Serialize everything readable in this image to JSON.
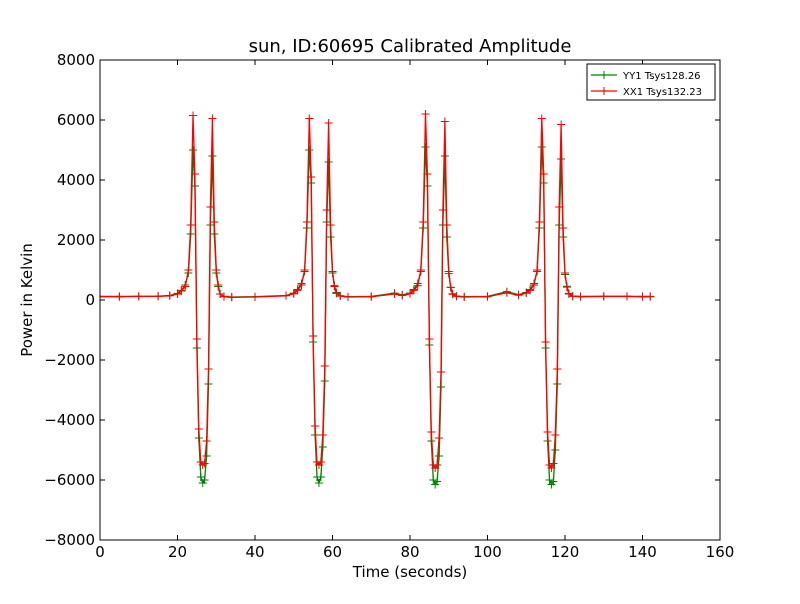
{
  "chart_data": {
    "type": "line",
    "title": "sun, ID:60695 Calibrated Amplitude",
    "xlabel": "Time (seconds)",
    "ylabel": "Power in Kelvin",
    "xlim": [
      0,
      160
    ],
    "ylim": [
      -8000,
      8000
    ],
    "xticks": [
      0,
      20,
      40,
      60,
      80,
      100,
      120,
      140,
      160
    ],
    "xtick_labels": [
      "0",
      "20",
      "40",
      "60",
      "80",
      "100",
      "120",
      "140",
      "160"
    ],
    "yticks": [
      -8000,
      -6000,
      -4000,
      -2000,
      0,
      2000,
      4000,
      6000,
      8000
    ],
    "ytick_labels": [
      "−8000",
      "−6000",
      "−4000",
      "−2000",
      "0",
      "2000",
      "4000",
      "6000",
      "8000"
    ],
    "grid": false,
    "legend_position": "top-right",
    "series": [
      {
        "name": "YY1 Tsys128.26",
        "color": "#008000",
        "marker": "plus",
        "x": [
          0,
          5,
          10,
          15,
          18,
          20,
          21,
          22,
          22.8,
          23.4,
          24,
          24.5,
          25,
          25.5,
          26,
          26.5,
          27,
          27.5,
          28,
          28.5,
          29,
          29.5,
          30,
          30.5,
          31,
          32,
          34,
          40,
          48,
          50,
          51,
          52,
          52.8,
          53.4,
          54,
          54.5,
          55,
          55.5,
          56,
          56.5,
          57,
          57.5,
          58,
          58.5,
          59,
          59.5,
          60,
          60.5,
          61,
          62,
          64,
          70,
          76,
          78,
          80,
          81,
          82,
          82.8,
          83.4,
          84,
          84.5,
          85,
          85.5,
          86,
          86.5,
          87,
          87.5,
          88,
          88.5,
          89,
          89.5,
          90,
          90.5,
          91,
          92,
          94,
          100,
          105,
          108,
          110,
          111,
          112,
          112.8,
          113.4,
          114,
          114.5,
          115,
          115.5,
          116,
          116.5,
          117,
          117.5,
          118,
          118.5,
          119,
          119.5,
          120,
          120.5,
          121,
          122,
          124,
          130,
          136,
          140,
          142
        ],
        "y": [
          120,
          120,
          125,
          130,
          150,
          220,
          320,
          500,
          900,
          2200,
          5000,
          3800,
          -1600,
          -4600,
          -5900,
          -6100,
          -6000,
          -5200,
          -2800,
          2500,
          4800,
          2200,
          900,
          450,
          200,
          120,
          100,
          110,
          150,
          230,
          350,
          550,
          950,
          2400,
          5000,
          3900,
          -1400,
          -4500,
          -5900,
          -6100,
          -5900,
          -4900,
          -2700,
          2600,
          4600,
          2100,
          900,
          480,
          250,
          140,
          110,
          120,
          230,
          170,
          230,
          350,
          550,
          950,
          2400,
          5100,
          3800,
          -1500,
          -4700,
          -6000,
          -6150,
          -6050,
          -5200,
          -2900,
          2500,
          4800,
          2100,
          880,
          420,
          210,
          130,
          110,
          120,
          280,
          180,
          250,
          350,
          550,
          950,
          2400,
          5100,
          3900,
          -1600,
          -4700,
          -6000,
          -6150,
          -6050,
          -5000,
          -2800,
          2500,
          4700,
          2100,
          850,
          460,
          220,
          130,
          120,
          125,
          125,
          120,
          120
        ]
      },
      {
        "name": "XX1 Tsys132.23",
        "color": "#ff0000",
        "marker": "plus",
        "x": [
          0,
          5,
          10,
          15,
          18,
          20,
          21,
          22,
          22.8,
          23.4,
          24,
          24.5,
          25,
          25.5,
          26,
          26.5,
          27,
          27.5,
          28,
          28.5,
          29,
          29.5,
          30,
          30.5,
          31,
          32,
          34,
          40,
          48,
          50,
          51,
          52,
          52.8,
          53.4,
          54,
          54.5,
          55,
          55.5,
          56,
          56.5,
          57,
          57.5,
          58,
          58.5,
          59,
          59.5,
          60,
          60.5,
          61,
          62,
          64,
          70,
          76,
          78,
          80,
          81,
          82,
          82.8,
          83.4,
          84,
          84.5,
          85,
          85.5,
          86,
          86.5,
          87,
          87.5,
          88,
          88.5,
          89,
          89.5,
          90,
          90.5,
          91,
          92,
          94,
          100,
          105,
          108,
          110,
          111,
          112,
          112.8,
          113.4,
          114,
          114.5,
          115,
          115.5,
          116,
          116.5,
          117,
          117.5,
          118,
          118.5,
          119,
          119.5,
          120,
          120.5,
          121,
          122,
          124,
          130,
          136,
          140,
          142
        ],
        "y": [
          110,
          110,
          115,
          120,
          140,
          200,
          300,
          450,
          1000,
          2500,
          6150,
          4200,
          -1300,
          -4300,
          -5400,
          -5500,
          -5450,
          -4700,
          -2300,
          3100,
          6050,
          2600,
          1000,
          500,
          200,
          110,
          90,
          100,
          140,
          210,
          320,
          500,
          1000,
          2600,
          6050,
          4100,
          -1200,
          -4200,
          -5400,
          -5500,
          -5400,
          -4500,
          -2200,
          3000,
          5900,
          2500,
          950,
          450,
          220,
          130,
          100,
          110,
          200,
          150,
          210,
          320,
          480,
          1000,
          2600,
          6200,
          4200,
          -1300,
          -4400,
          -5500,
          -5600,
          -5500,
          -4600,
          -2400,
          3000,
          5950,
          2500,
          950,
          420,
          190,
          120,
          100,
          110,
          240,
          160,
          230,
          320,
          500,
          1000,
          2600,
          6050,
          4200,
          -1400,
          -4400,
          -5500,
          -5600,
          -5450,
          -4500,
          -2300,
          3100,
          5850,
          2400,
          900,
          430,
          200,
          120,
          110,
          115,
          115,
          110,
          110
        ]
      }
    ]
  }
}
